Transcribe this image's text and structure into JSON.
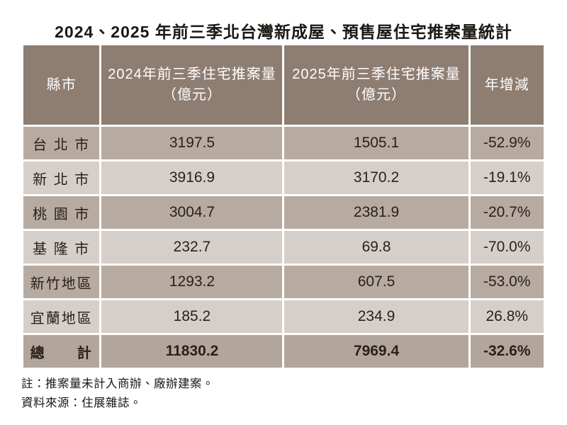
{
  "title": "2024、2025 年前三季北台灣新成屋、預售屋住宅推案量統計",
  "colors": {
    "header_bg": "#8e7d71",
    "row_odd_bg": "#b7aba1",
    "row_even_bg": "#d6cec8",
    "total_bg": "#b2a69c",
    "header_text": "#ffffff",
    "body_text": "#2a211c",
    "title_text": "#1b1713",
    "page_bg": "#ffffff"
  },
  "table": {
    "headers": [
      {
        "label": "縣市",
        "unit": ""
      },
      {
        "label": "2024年前三季住宅推案量",
        "unit": "（億元）"
      },
      {
        "label": "2025年前三季住宅推案量",
        "unit": "（億元）"
      },
      {
        "label": "年增減",
        "unit": ""
      }
    ],
    "rows": [
      {
        "city": "台 北 市",
        "y2024": "3197.5",
        "y2025": "1505.1",
        "yoy": "-52.9%"
      },
      {
        "city": "新 北 市",
        "y2024": "3916.9",
        "y2025": "3170.2",
        "yoy": "-19.1%"
      },
      {
        "city": "桃 園 市",
        "y2024": "3004.7",
        "y2025": "2381.9",
        "yoy": "-20.7%"
      },
      {
        "city": "基 隆 市",
        "y2024": "232.7",
        "y2025": "69.8",
        "yoy": "-70.0%"
      },
      {
        "city": "新竹地區",
        "y2024": "1293.2",
        "y2025": "607.5",
        "yoy": "-53.0%"
      },
      {
        "city": "宜蘭地區",
        "y2024": "185.2",
        "y2025": "234.9",
        "yoy": "26.8%"
      }
    ],
    "total": {
      "city": "總　　計",
      "y2024": "11830.2",
      "y2025": "7969.4",
      "yoy": "-32.6%"
    }
  },
  "notes": {
    "line1": "註：推案量未計入商辦、廠辦建案。",
    "line2": "資料來源：住展雜誌。"
  },
  "chart_data": {
    "type": "table",
    "title": "2024、2025 年前三季北台灣新成屋、預售屋住宅推案量統計",
    "columns": [
      "縣市",
      "2024年前三季住宅推案量（億元）",
      "2025年前三季住宅推案量（億元）",
      "年增減"
    ],
    "rows": [
      [
        "台北市",
        3197.5,
        1505.1,
        "-52.9%"
      ],
      [
        "新北市",
        3916.9,
        3170.2,
        "-19.1%"
      ],
      [
        "桃園市",
        3004.7,
        2381.9,
        "-20.7%"
      ],
      [
        "基隆市",
        232.7,
        69.8,
        "-70.0%"
      ],
      [
        "新竹地區",
        1293.2,
        607.5,
        "-53.0%"
      ],
      [
        "宜蘭地區",
        185.2,
        234.9,
        "26.8%"
      ],
      [
        "總計",
        11830.2,
        7969.4,
        "-32.6%"
      ]
    ],
    "notes": [
      "註：推案量未計入商辦、廠辦建案。",
      "資料來源：住展雜誌。"
    ]
  }
}
